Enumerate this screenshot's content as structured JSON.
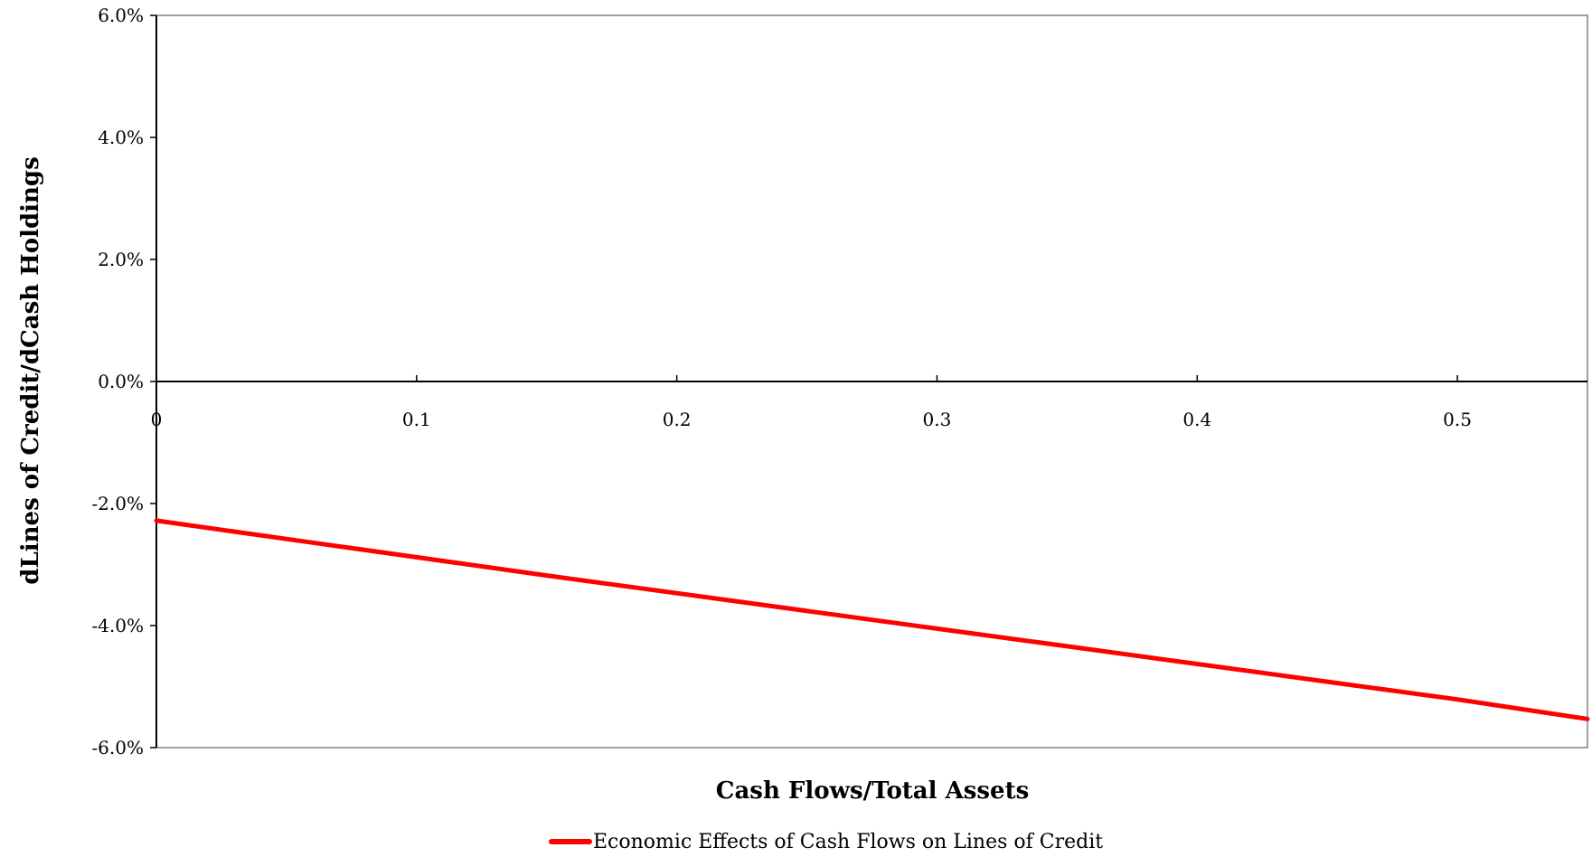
{
  "chart_data": {
    "type": "line",
    "title": "",
    "xlabel": "Cash Flows/Total Assets",
    "ylabel": "dLines of Credit/dCash Holdings",
    "xlim": [
      0,
      0.55
    ],
    "ylim": [
      -0.06,
      0.06
    ],
    "x_ticks": [
      0,
      0.1,
      0.2,
      0.3,
      0.4,
      0.5
    ],
    "x_tick_labels": [
      "0",
      "0.1",
      "0.2",
      "0.3",
      "0.4",
      "0.5"
    ],
    "y_ticks": [
      0.06,
      0.04,
      0.02,
      0.0,
      -0.02,
      -0.04,
      -0.06
    ],
    "y_tick_labels": [
      "6.0%",
      "4.0%",
      "2.0%",
      "0.0%",
      "-2.0%",
      "-4.0%",
      "-6.0%"
    ],
    "grid": false,
    "legend_position": "bottom-center",
    "series": [
      {
        "name": "Economic Effects of Cash Flows on Lines of Credit",
        "color": "#ff0000",
        "x": [
          0,
          0.05,
          0.1,
          0.15,
          0.2,
          0.25,
          0.3,
          0.35,
          0.4,
          0.45,
          0.5,
          0.55
        ],
        "values": [
          -0.0228,
          -0.0258,
          -0.0288,
          -0.0318,
          -0.0347,
          -0.0376,
          -0.0405,
          -0.0434,
          -0.0463,
          -0.0492,
          -0.0521,
          -0.0553
        ]
      }
    ]
  }
}
